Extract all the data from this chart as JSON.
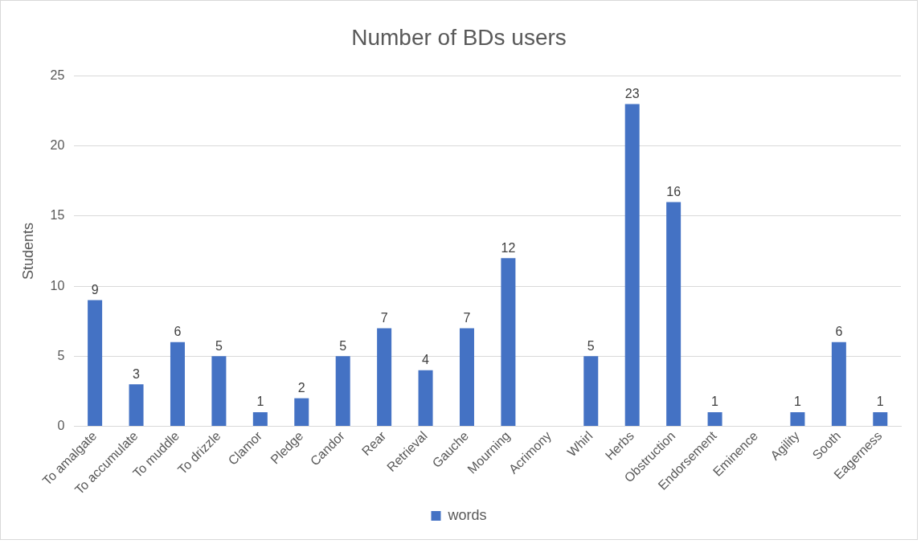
{
  "chart_data": {
    "type": "bar",
    "title": "Number of BDs users",
    "ylabel": "Students",
    "categories": [
      "To amalgate",
      "To accumulate",
      "To muddle",
      "To drizzle",
      "Clamor",
      "Pledge",
      "Candor",
      "Rear",
      "Retrieval",
      "Gauche",
      "Mourning",
      "Acrimony",
      "Whirl",
      "Herbs",
      "Obstruction",
      "Endorsement",
      "Eminence",
      "Agility",
      "Sooth",
      "Eagerness"
    ],
    "series": [
      {
        "name": "words",
        "color": "#4472c4",
        "values": [
          9,
          3,
          6,
          5,
          1,
          2,
          5,
          7,
          4,
          7,
          12,
          null,
          5,
          23,
          16,
          1,
          null,
          1,
          6,
          1
        ]
      }
    ],
    "ylim": [
      0,
      25
    ],
    "yticks": [
      0,
      5,
      10,
      15,
      20,
      25
    ],
    "grid": "y",
    "legend": "bottom",
    "data_labels": true
  }
}
